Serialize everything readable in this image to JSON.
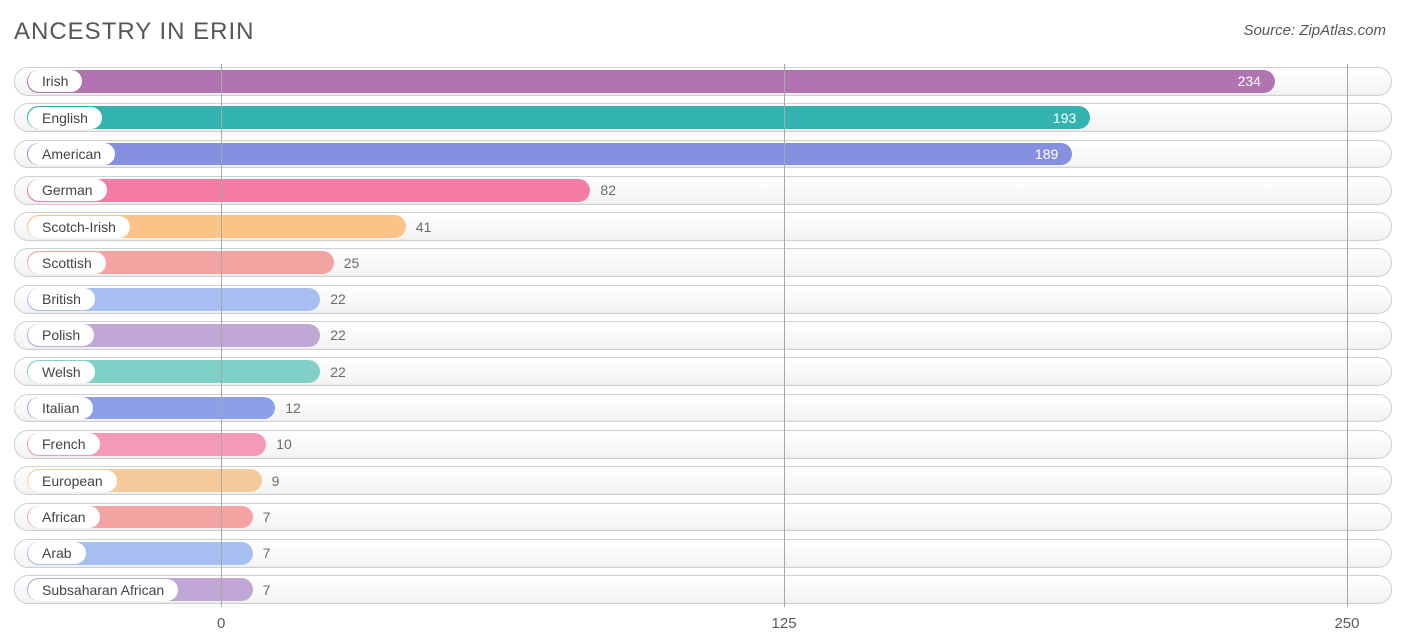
{
  "title": "ANCESTRY IN ERIN",
  "source": "Source: ZipAtlas.com",
  "chart": {
    "type": "bar-horizontal",
    "x_domain_min": -46,
    "x_domain_max": 260,
    "value_inside_threshold_pct": 70,
    "bar_origin_value": -44,
    "grid_color": "#a8a8a8",
    "track_bg_top": "#ffffff",
    "track_bg_bottom": "#f3f3f3",
    "track_border": "#cfcfcf",
    "title_color": "#575757",
    "title_fontsize": 24,
    "label_fontsize": 14,
    "axis_fontsize": 15,
    "ticks": [
      {
        "value": 0,
        "label": "0"
      },
      {
        "value": 125,
        "label": "125"
      },
      {
        "value": 250,
        "label": "250"
      }
    ],
    "rows": [
      {
        "label": "Irish",
        "value": 234,
        "color": "#b173b1",
        "text_color": "#ffffff"
      },
      {
        "label": "English",
        "value": 193,
        "color": "#32b3b0",
        "text_color": "#ffffff"
      },
      {
        "label": "American",
        "value": 189,
        "color": "#8690e0",
        "text_color": "#ffffff"
      },
      {
        "label": "German",
        "value": 82,
        "color": "#f47ba6",
        "text_color": "#6b6b6b"
      },
      {
        "label": "Scotch-Irish",
        "value": 41,
        "color": "#fcc388",
        "text_color": "#6b6b6b"
      },
      {
        "label": "Scottish",
        "value": 25,
        "color": "#f4a3a3",
        "text_color": "#6b6b6b"
      },
      {
        "label": "British",
        "value": 22,
        "color": "#a6bff0",
        "text_color": "#6b6b6b"
      },
      {
        "label": "Polish",
        "value": 22,
        "color": "#c0a7d6",
        "text_color": "#6b6b6b"
      },
      {
        "label": "Welsh",
        "value": 22,
        "color": "#80d0c7",
        "text_color": "#6b6b6b"
      },
      {
        "label": "Italian",
        "value": 12,
        "color": "#8ba0e6",
        "text_color": "#6b6b6b"
      },
      {
        "label": "French",
        "value": 10,
        "color": "#f29ab6",
        "text_color": "#6b6b6b"
      },
      {
        "label": "European",
        "value": 9,
        "color": "#f6c99a",
        "text_color": "#6b6b6b"
      },
      {
        "label": "African",
        "value": 7,
        "color": "#f4a3a3",
        "text_color": "#6b6b6b"
      },
      {
        "label": "Arab",
        "value": 7,
        "color": "#a6bff0",
        "text_color": "#6b6b6b"
      },
      {
        "label": "Subsaharan African",
        "value": 7,
        "color": "#c0a7d6",
        "text_color": "#6b6b6b"
      }
    ]
  }
}
